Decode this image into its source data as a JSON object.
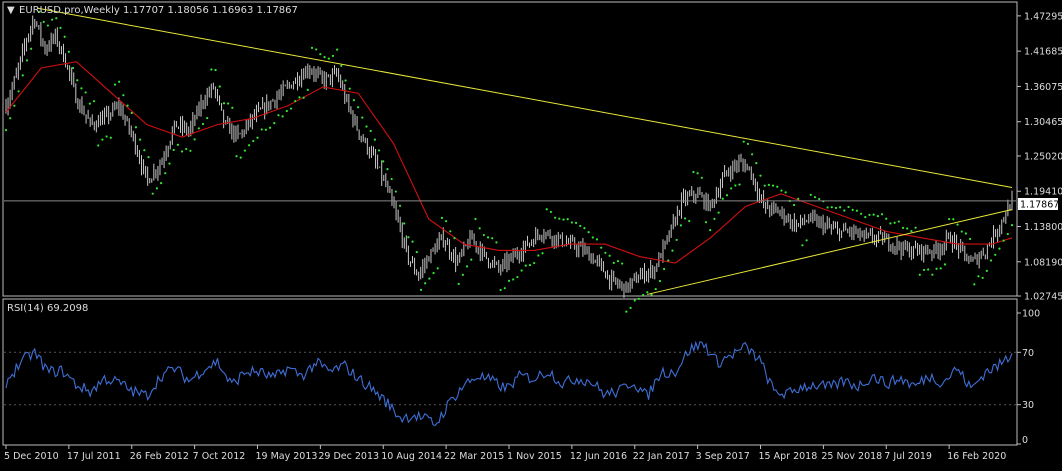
{
  "symbol_header": {
    "marker": "▼",
    "text": "EURUSD.pro,Weekly  1.17707 1.18056 1.16963 1.17867"
  },
  "current_price_label": "1.17867",
  "rsi_label": "RSI(14) 69.2098",
  "colors": {
    "background": "#000000",
    "frame": "#c0c0c0",
    "grid": "#2f2f2f",
    "bar": "#c9c9c9",
    "moving_average": "#d01010",
    "parabolic_sar": "#34e934",
    "trendline": "#e8e83a",
    "rsi_line": "#3f6fd6",
    "rsi_levels": "#555555",
    "text": "#dcdcdc",
    "price_tag_bg": "#ffffff",
    "price_tag_text": "#000000"
  },
  "chart_data": [
    {
      "type": "ohlc",
      "symbol": "EURUSD.pro",
      "timeframe": "Weekly",
      "last_bar": {
        "open": 1.17707,
        "high": 1.18056,
        "low": 1.16963,
        "close": 1.17867
      },
      "y_ticks": [
        "1.47295",
        "1.41685",
        "1.36075",
        "1.30465",
        "1.25020",
        "1.19410",
        "1.13800",
        "1.08190",
        "1.02745"
      ],
      "ylim": [
        1.0275,
        1.495
      ],
      "x_ticks": [
        "5 Dec 2010",
        "17 Jul 2011",
        "26 Feb 2012",
        "7 Oct 2012",
        "19 May 2013",
        "29 Dec 2013",
        "10 Aug 2014",
        "22 Mar 2015",
        "1 Nov 2015",
        "12 Jun 2016",
        "22 Jan 2017",
        "3 Sep 2017",
        "15 Apr 2018",
        "25 Nov 2018",
        "7 Jul 2019",
        "16 Feb 2020"
      ],
      "close_series": [
        {
          "x": 0.0,
          "y": 1.33
        },
        {
          "x": 0.15,
          "y": 1.38
        },
        {
          "x": 0.3,
          "y": 1.44
        },
        {
          "x": 0.4,
          "y": 1.47
        },
        {
          "x": 0.55,
          "y": 1.42
        },
        {
          "x": 0.7,
          "y": 1.44
        },
        {
          "x": 0.85,
          "y": 1.4
        },
        {
          "x": 1.0,
          "y": 1.34
        },
        {
          "x": 1.2,
          "y": 1.3
        },
        {
          "x": 1.4,
          "y": 1.31
        },
        {
          "x": 1.6,
          "y": 1.33
        },
        {
          "x": 1.8,
          "y": 1.28
        },
        {
          "x": 2.0,
          "y": 1.21
        },
        {
          "x": 2.2,
          "y": 1.24
        },
        {
          "x": 2.4,
          "y": 1.3
        },
        {
          "x": 2.6,
          "y": 1.29
        },
        {
          "x": 2.8,
          "y": 1.34
        },
        {
          "x": 2.95,
          "y": 1.36
        },
        {
          "x": 3.1,
          "y": 1.3
        },
        {
          "x": 3.3,
          "y": 1.28
        },
        {
          "x": 3.5,
          "y": 1.31
        },
        {
          "x": 3.7,
          "y": 1.33
        },
        {
          "x": 3.9,
          "y": 1.35
        },
        {
          "x": 4.1,
          "y": 1.37
        },
        {
          "x": 4.3,
          "y": 1.39
        },
        {
          "x": 4.5,
          "y": 1.37
        },
        {
          "x": 4.7,
          "y": 1.38
        },
        {
          "x": 4.85,
          "y": 1.33
        },
        {
          "x": 5.0,
          "y": 1.29
        },
        {
          "x": 5.2,
          "y": 1.25
        },
        {
          "x": 5.4,
          "y": 1.2
        },
        {
          "x": 5.55,
          "y": 1.15
        },
        {
          "x": 5.7,
          "y": 1.09
        },
        {
          "x": 5.85,
          "y": 1.06
        },
        {
          "x": 6.0,
          "y": 1.09
        },
        {
          "x": 6.2,
          "y": 1.12
        },
        {
          "x": 6.4,
          "y": 1.08
        },
        {
          "x": 6.6,
          "y": 1.12
        },
        {
          "x": 6.8,
          "y": 1.09
        },
        {
          "x": 7.0,
          "y": 1.07
        },
        {
          "x": 7.2,
          "y": 1.09
        },
        {
          "x": 7.4,
          "y": 1.11
        },
        {
          "x": 7.6,
          "y": 1.13
        },
        {
          "x": 7.8,
          "y": 1.12
        },
        {
          "x": 8.0,
          "y": 1.11
        },
        {
          "x": 8.2,
          "y": 1.1
        },
        {
          "x": 8.4,
          "y": 1.08
        },
        {
          "x": 8.6,
          "y": 1.05
        },
        {
          "x": 8.8,
          "y": 1.04
        },
        {
          "x": 9.0,
          "y": 1.06
        },
        {
          "x": 9.2,
          "y": 1.07
        },
        {
          "x": 9.4,
          "y": 1.12
        },
        {
          "x": 9.6,
          "y": 1.18
        },
        {
          "x": 9.8,
          "y": 1.19
        },
        {
          "x": 10.0,
          "y": 1.17
        },
        {
          "x": 10.2,
          "y": 1.22
        },
        {
          "x": 10.4,
          "y": 1.24
        },
        {
          "x": 10.55,
          "y": 1.23
        },
        {
          "x": 10.75,
          "y": 1.17
        },
        {
          "x": 11.0,
          "y": 1.16
        },
        {
          "x": 11.2,
          "y": 1.14
        },
        {
          "x": 11.4,
          "y": 1.15
        },
        {
          "x": 11.6,
          "y": 1.14
        },
        {
          "x": 11.8,
          "y": 1.13
        },
        {
          "x": 12.0,
          "y": 1.13
        },
        {
          "x": 12.2,
          "y": 1.12
        },
        {
          "x": 12.4,
          "y": 1.12
        },
        {
          "x": 12.6,
          "y": 1.11
        },
        {
          "x": 12.8,
          "y": 1.1
        },
        {
          "x": 13.0,
          "y": 1.1
        },
        {
          "x": 13.2,
          "y": 1.1
        },
        {
          "x": 13.4,
          "y": 1.12
        },
        {
          "x": 13.55,
          "y": 1.1
        },
        {
          "x": 13.7,
          "y": 1.08
        },
        {
          "x": 13.9,
          "y": 1.1
        },
        {
          "x": 14.1,
          "y": 1.14
        },
        {
          "x": 14.28,
          "y": 1.17867
        }
      ],
      "moving_average": [
        {
          "x": 0.0,
          "y": 1.32
        },
        {
          "x": 0.5,
          "y": 1.39
        },
        {
          "x": 1.0,
          "y": 1.4
        },
        {
          "x": 1.5,
          "y": 1.35
        },
        {
          "x": 2.0,
          "y": 1.3
        },
        {
          "x": 2.5,
          "y": 1.28
        },
        {
          "x": 3.0,
          "y": 1.3
        },
        {
          "x": 3.5,
          "y": 1.31
        },
        {
          "x": 4.0,
          "y": 1.33
        },
        {
          "x": 4.5,
          "y": 1.36
        },
        {
          "x": 5.0,
          "y": 1.35
        },
        {
          "x": 5.5,
          "y": 1.27
        },
        {
          "x": 6.0,
          "y": 1.15
        },
        {
          "x": 6.5,
          "y": 1.11
        },
        {
          "x": 7.0,
          "y": 1.1
        },
        {
          "x": 7.5,
          "y": 1.1
        },
        {
          "x": 8.0,
          "y": 1.11
        },
        {
          "x": 8.5,
          "y": 1.11
        },
        {
          "x": 9.0,
          "y": 1.09
        },
        {
          "x": 9.5,
          "y": 1.08
        },
        {
          "x": 10.0,
          "y": 1.12
        },
        {
          "x": 10.5,
          "y": 1.17
        },
        {
          "x": 11.0,
          "y": 1.19
        },
        {
          "x": 11.5,
          "y": 1.17
        },
        {
          "x": 12.0,
          "y": 1.15
        },
        {
          "x": 12.5,
          "y": 1.13
        },
        {
          "x": 13.0,
          "y": 1.12
        },
        {
          "x": 13.5,
          "y": 1.11
        },
        {
          "x": 14.0,
          "y": 1.11
        },
        {
          "x": 14.28,
          "y": 1.12
        }
      ],
      "trendlines": [
        {
          "from": {
            "x": 0.45,
            "y": 1.485
          },
          "to": {
            "x": 14.28,
            "y": 1.2
          }
        },
        {
          "from": {
            "x": 9.1,
            "y": 1.03
          },
          "to": {
            "x": 14.28,
            "y": 1.165
          }
        }
      ]
    },
    {
      "type": "line",
      "name": "RSI(14)",
      "last_value": 69.2098,
      "y_ticks": [
        "100",
        "70",
        "30",
        "0"
      ],
      "ylim": [
        0,
        100
      ],
      "levels": [
        70,
        30
      ],
      "values": [
        {
          "x": 0.0,
          "y": 47
        },
        {
          "x": 0.2,
          "y": 62
        },
        {
          "x": 0.4,
          "y": 70
        },
        {
          "x": 0.6,
          "y": 55
        },
        {
          "x": 0.8,
          "y": 56
        },
        {
          "x": 1.0,
          "y": 45
        },
        {
          "x": 1.2,
          "y": 40
        },
        {
          "x": 1.4,
          "y": 50
        },
        {
          "x": 1.6,
          "y": 47
        },
        {
          "x": 1.8,
          "y": 40
        },
        {
          "x": 2.0,
          "y": 37
        },
        {
          "x": 2.2,
          "y": 52
        },
        {
          "x": 2.4,
          "y": 58
        },
        {
          "x": 2.6,
          "y": 48
        },
        {
          "x": 2.8,
          "y": 57
        },
        {
          "x": 3.0,
          "y": 63
        },
        {
          "x": 3.2,
          "y": 45
        },
        {
          "x": 3.4,
          "y": 55
        },
        {
          "x": 3.6,
          "y": 55
        },
        {
          "x": 3.8,
          "y": 50
        },
        {
          "x": 4.0,
          "y": 58
        },
        {
          "x": 4.2,
          "y": 52
        },
        {
          "x": 4.4,
          "y": 62
        },
        {
          "x": 4.6,
          "y": 55
        },
        {
          "x": 4.8,
          "y": 60
        },
        {
          "x": 5.0,
          "y": 50
        },
        {
          "x": 5.2,
          "y": 42
        },
        {
          "x": 5.4,
          "y": 32
        },
        {
          "x": 5.6,
          "y": 20
        },
        {
          "x": 5.8,
          "y": 22
        },
        {
          "x": 6.0,
          "y": 18
        },
        {
          "x": 6.1,
          "y": 15
        },
        {
          "x": 6.3,
          "y": 32
        },
        {
          "x": 6.5,
          "y": 45
        },
        {
          "x": 6.7,
          "y": 52
        },
        {
          "x": 6.9,
          "y": 48
        },
        {
          "x": 7.1,
          "y": 42
        },
        {
          "x": 7.3,
          "y": 52
        },
        {
          "x": 7.5,
          "y": 50
        },
        {
          "x": 7.7,
          "y": 56
        },
        {
          "x": 7.9,
          "y": 46
        },
        {
          "x": 8.1,
          "y": 50
        },
        {
          "x": 8.3,
          "y": 48
        },
        {
          "x": 8.5,
          "y": 38
        },
        {
          "x": 8.7,
          "y": 40
        },
        {
          "x": 8.9,
          "y": 48
        },
        {
          "x": 9.1,
          "y": 36
        },
        {
          "x": 9.3,
          "y": 55
        },
        {
          "x": 9.5,
          "y": 55
        },
        {
          "x": 9.7,
          "y": 72
        },
        {
          "x": 9.9,
          "y": 77
        },
        {
          "x": 10.1,
          "y": 62
        },
        {
          "x": 10.3,
          "y": 68
        },
        {
          "x": 10.5,
          "y": 74
        },
        {
          "x": 10.7,
          "y": 64
        },
        {
          "x": 10.9,
          "y": 40
        },
        {
          "x": 11.1,
          "y": 38
        },
        {
          "x": 11.3,
          "y": 44
        },
        {
          "x": 11.5,
          "y": 45
        },
        {
          "x": 11.7,
          "y": 43
        },
        {
          "x": 11.9,
          "y": 48
        },
        {
          "x": 12.1,
          "y": 44
        },
        {
          "x": 12.3,
          "y": 52
        },
        {
          "x": 12.5,
          "y": 46
        },
        {
          "x": 12.7,
          "y": 50
        },
        {
          "x": 12.9,
          "y": 44
        },
        {
          "x": 13.1,
          "y": 52
        },
        {
          "x": 13.3,
          "y": 47
        },
        {
          "x": 13.5,
          "y": 58
        },
        {
          "x": 13.7,
          "y": 42
        },
        {
          "x": 13.9,
          "y": 55
        },
        {
          "x": 14.1,
          "y": 60
        },
        {
          "x": 14.28,
          "y": 69.2
        }
      ]
    }
  ]
}
